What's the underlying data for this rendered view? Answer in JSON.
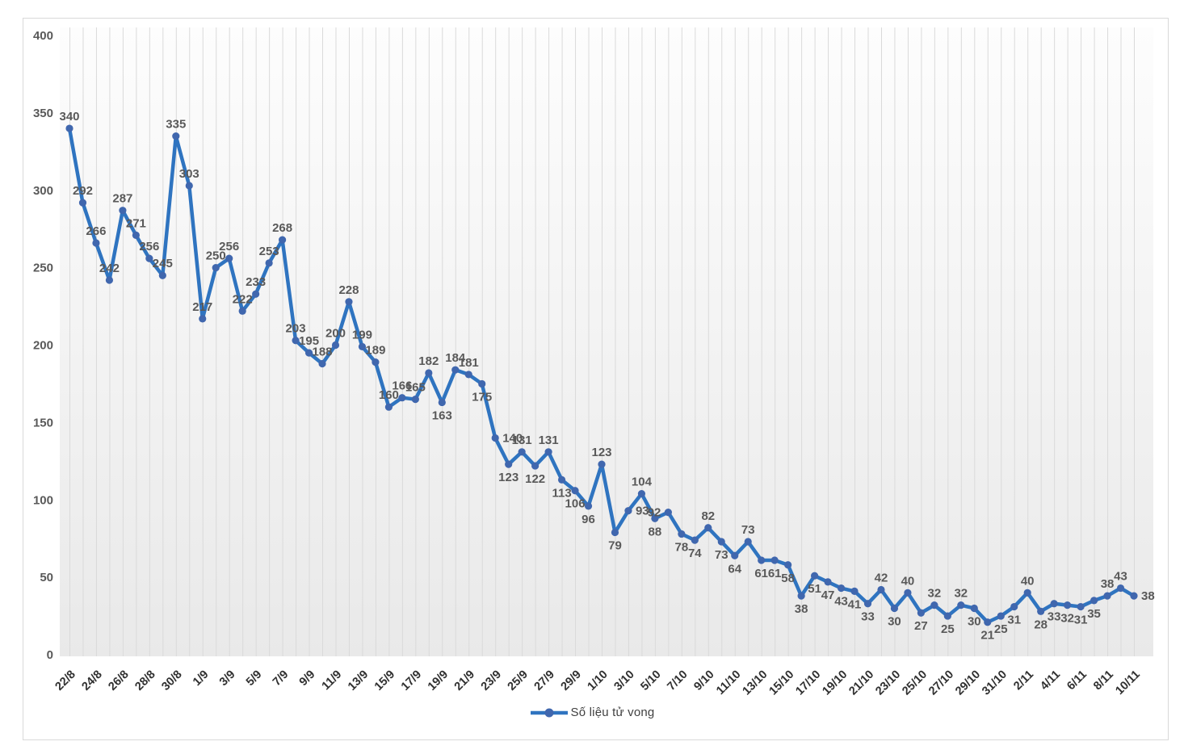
{
  "chart_data": {
    "type": "line",
    "title": "",
    "legend": "Số liệu tử vong",
    "legend_position": "bottom",
    "grid": "vertical",
    "ylim": [
      0,
      400
    ],
    "yticks": [
      0,
      50,
      100,
      150,
      200,
      250,
      300,
      350,
      400
    ],
    "x_tick_every": 2,
    "x": [
      "22/8",
      "23/8",
      "24/8",
      "25/8",
      "26/8",
      "27/8",
      "28/8",
      "29/8",
      "30/8",
      "31/8",
      "1/9",
      "2/9",
      "3/9",
      "4/9",
      "5/9",
      "6/9",
      "7/9",
      "8/9",
      "9/9",
      "10/9",
      "11/9",
      "12/9",
      "13/9",
      "14/9",
      "15/9",
      "16/9",
      "17/9",
      "18/9",
      "19/9",
      "20/9",
      "21/9",
      "22/9",
      "23/9",
      "24/9",
      "25/9",
      "26/9",
      "27/9",
      "28/9",
      "29/9",
      "30/9",
      "1/10",
      "2/10",
      "3/10",
      "4/10",
      "5/10",
      "6/10",
      "7/10",
      "8/10",
      "9/10",
      "10/10",
      "11/10",
      "12/10",
      "13/10",
      "14/10",
      "15/10",
      "16/10",
      "17/10",
      "18/10",
      "19/10",
      "20/10",
      "21/10",
      "22/10",
      "23/10",
      "24/10",
      "25/10",
      "26/10",
      "27/10",
      "28/10",
      "29/10",
      "30/10",
      "31/10",
      "1/11",
      "2/11",
      "3/11",
      "4/11",
      "5/11",
      "6/11",
      "7/11",
      "8/11",
      "9/11",
      "10/11"
    ],
    "series": [
      {
        "name": "Số liệu tử vong",
        "values": [
          340,
          292,
          266,
          242,
          287,
          271,
          256,
          245,
          335,
          303,
          217,
          250,
          256,
          222,
          233,
          253,
          268,
          203,
          195,
          188,
          200,
          228,
          199,
          189,
          160,
          166,
          165,
          182,
          163,
          184,
          181,
          175,
          140,
          123,
          131,
          122,
          131,
          113,
          106,
          96,
          123,
          79,
          93,
          104,
          88,
          92,
          78,
          74,
          82,
          73,
          64,
          73,
          61,
          61,
          58,
          38,
          51,
          47,
          43,
          41,
          33,
          42,
          30,
          40,
          27,
          32,
          25,
          32,
          30,
          21,
          25,
          31,
          40,
          28,
          33,
          32,
          31,
          35,
          38,
          43,
          38
        ]
      }
    ],
    "label_placements": "aaaaaaaaaaaaaaaaaaaaaaaaaaaabaabrbababbbabrablbbabbabbbbbbbbbababababbbbabbbbbaar",
    "colors": {
      "line": "#2f74c0",
      "marker": "#4067ae",
      "data_label": "#595959",
      "y_axis_label": "#595959",
      "x_axis_label": "#303030",
      "gridline": "#dadada",
      "plot_fill_top": "#fdfdfd",
      "plot_fill_bottom": "#e9e9e9",
      "frame_border": "#d9d9d9"
    }
  }
}
